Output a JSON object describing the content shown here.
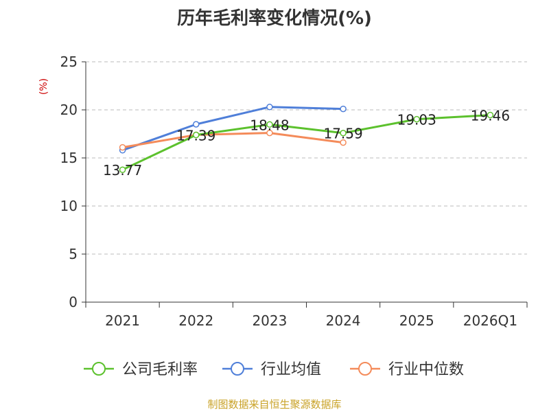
{
  "chart_data": {
    "type": "line",
    "title": "历年毛利率变化情况(%)",
    "ylabel": "(%)",
    "xlabel": "",
    "categories": [
      "2021",
      "2022",
      "2023",
      "2024",
      "2025",
      "2026Q1"
    ],
    "ylim": [
      0,
      25
    ],
    "yticks": [
      0,
      5,
      10,
      15,
      20,
      25
    ],
    "grid": true,
    "legend_position": "bottom",
    "series": [
      {
        "name": "公司毛利率",
        "color": "#5cc12d",
        "values": [
          13.77,
          17.39,
          18.48,
          17.59,
          19.03,
          19.46
        ],
        "labels": [
          "13.77",
          "17.39",
          "18.48",
          "17.59",
          "19.03",
          "19.46"
        ]
      },
      {
        "name": "行业均值",
        "color": "#4f7fd9",
        "values": [
          15.8,
          18.5,
          20.3,
          20.1,
          null,
          null
        ]
      },
      {
        "name": "行业中位数",
        "color": "#f48b5a",
        "values": [
          16.1,
          17.4,
          17.6,
          16.6,
          null,
          null
        ]
      }
    ]
  },
  "footer": {
    "source": "制图数据来自恒生聚源数据库"
  }
}
